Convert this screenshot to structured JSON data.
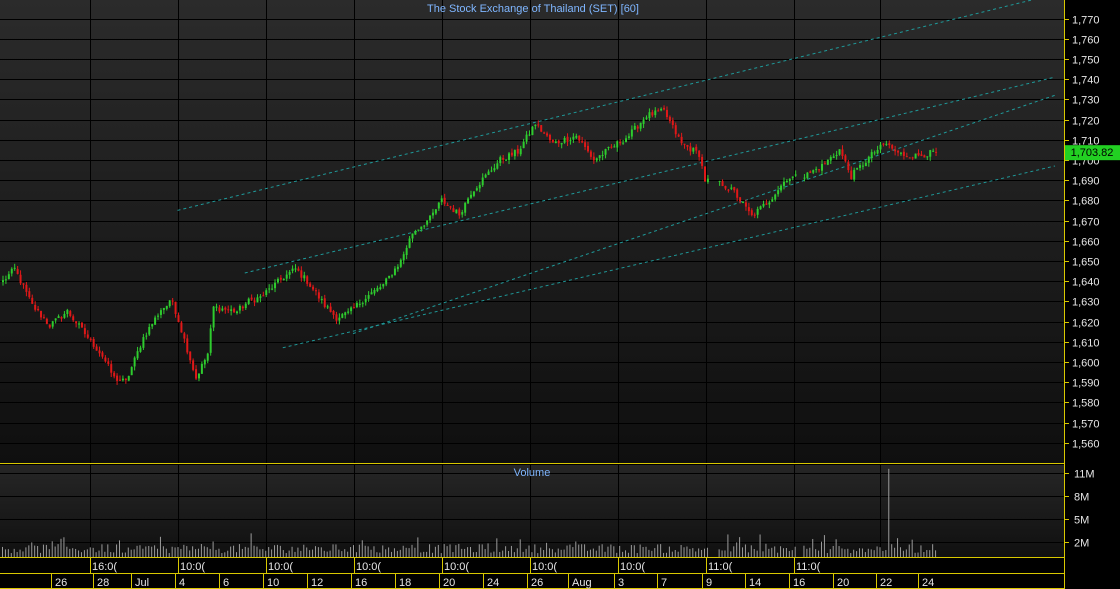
{
  "title": "The Stock Exchange of Thailand (SET) [60]",
  "last_price_label": "1,703.82",
  "colors": {
    "background": "#000000",
    "panel_grad_top": "#2a2a2a",
    "panel_grad_bottom": "#0e0e0e",
    "grid": "#000000",
    "axis_line": "#d8c800",
    "text": "#e6e6e6",
    "title_text": "#7fb6ff",
    "up": "#2ecc2e",
    "down": "#e01818",
    "channel": "#1f9a9a",
    "volume": "#9a9a9a",
    "last_badge_bg": "#22d022",
    "last_badge_text": "#000000"
  },
  "chart_data": [
    {
      "type": "candlestick",
      "title": "The Stock Exchange of Thailand (SET) [60]",
      "y_ticks": [
        "1,770",
        "1,760",
        "1,750",
        "1,740",
        "1,730",
        "1,720",
        "1,710",
        "1,700",
        "1,690",
        "1,680",
        "1,670",
        "1,660",
        "1,650",
        "1,640",
        "1,630",
        "1,620",
        "1,610",
        "1,600",
        "1,590",
        "1,580",
        "1,570",
        "1,560"
      ],
      "ylim": [
        1555,
        1775
      ],
      "bars_count": 320,
      "last_price": 1703.82,
      "anchor_closes": [
        [
          0,
          1640
        ],
        [
          4,
          1646
        ],
        [
          10,
          1628
        ],
        [
          16,
          1618
        ],
        [
          22,
          1625
        ],
        [
          28,
          1614
        ],
        [
          34,
          1603
        ],
        [
          38,
          1592
        ],
        [
          42,
          1590
        ],
        [
          48,
          1612
        ],
        [
          54,
          1626
        ],
        [
          58,
          1630
        ],
        [
          62,
          1611
        ],
        [
          66,
          1592
        ],
        [
          70,
          1604
        ],
        [
          72,
          1627
        ],
        [
          80,
          1625
        ],
        [
          84,
          1630
        ],
        [
          88,
          1632
        ],
        [
          96,
          1642
        ],
        [
          100,
          1646
        ],
        [
          104,
          1640
        ],
        [
          110,
          1628
        ],
        [
          114,
          1622
        ],
        [
          118,
          1624
        ],
        [
          124,
          1632
        ],
        [
          130,
          1638
        ],
        [
          136,
          1650
        ],
        [
          140,
          1664
        ],
        [
          146,
          1671
        ],
        [
          150,
          1680
        ],
        [
          156,
          1673
        ],
        [
          160,
          1684
        ],
        [
          170,
          1700
        ],
        [
          176,
          1704
        ],
        [
          182,
          1718
        ],
        [
          188,
          1708
        ],
        [
          192,
          1710
        ],
        [
          196,
          1712
        ],
        [
          202,
          1700
        ],
        [
          208,
          1706
        ],
        [
          214,
          1712
        ],
        [
          220,
          1722
        ],
        [
          226,
          1724
        ],
        [
          232,
          1708
        ],
        [
          238,
          1703
        ],
        [
          240,
          1690
        ],
        [
          246,
          1688
        ],
        [
          250,
          1684
        ],
        [
          256,
          1672
        ],
        [
          262,
          1680
        ],
        [
          268,
          1691
        ],
        [
          274,
          1692
        ],
        [
          280,
          1697
        ],
        [
          286,
          1705
        ],
        [
          290,
          1692
        ],
        [
          294,
          1698
        ],
        [
          298,
          1704
        ],
        [
          302,
          1708
        ],
        [
          306,
          1703
        ],
        [
          312,
          1702
        ],
        [
          319,
          1703.82
        ]
      ],
      "channel_lines": [
        {
          "from": [
            60,
            1675
          ],
          "to": [
            360,
            1782
          ]
        },
        {
          "from": [
            83,
            1644
          ],
          "to": [
            360,
            1741
          ]
        },
        {
          "from": [
            120,
            1614
          ],
          "to": [
            360,
            1732
          ]
        },
        {
          "from": [
            96,
            1607
          ],
          "to": [
            360,
            1697
          ]
        }
      ]
    },
    {
      "type": "bar",
      "title": "Volume",
      "y_ticks": [
        "11M",
        "8M",
        "5M",
        "2M"
      ],
      "ylim": [
        0,
        12
      ],
      "spike": {
        "bar": 303,
        "value": 11.5
      }
    }
  ],
  "x_axis": {
    "upper_labels": [
      "16:0(",
      "10:0(",
      "10:0(",
      "10:0(",
      "10:0(",
      "10:0(",
      "10:0(",
      "11:0(",
      "11:0("
    ],
    "lower_labels": [
      "26",
      "28",
      "Jul",
      "4",
      "6",
      "10",
      "12",
      "16",
      "18",
      "20",
      "24",
      "26",
      "Aug",
      "3",
      "7",
      "9",
      "14",
      "16",
      "20",
      "22",
      "24"
    ]
  }
}
